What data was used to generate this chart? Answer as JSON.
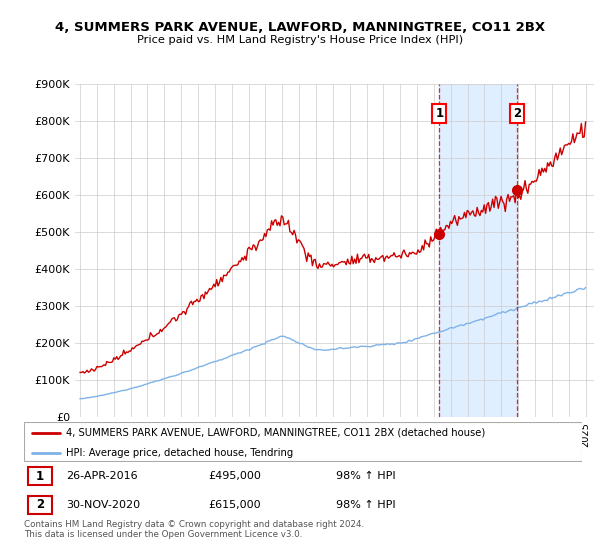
{
  "title": "4, SUMMERS PARK AVENUE, LAWFORD, MANNINGTREE, CO11 2BX",
  "subtitle": "Price paid vs. HM Land Registry's House Price Index (HPI)",
  "ylim": [
    0,
    900000
  ],
  "yticks": [
    0,
    100000,
    200000,
    300000,
    400000,
    500000,
    600000,
    700000,
    800000,
    900000
  ],
  "ytick_labels": [
    "£0",
    "£100K",
    "£200K",
    "£300K",
    "£400K",
    "£500K",
    "£600K",
    "£700K",
    "£800K",
    "£900K"
  ],
  "hpi_color": "#7fb3e8",
  "price_color": "#cc0000",
  "shade_color": "#ddeeff",
  "sale1_t": 21.33,
  "sale1_price": 495000,
  "sale2_t": 25.92,
  "sale2_price": 615000,
  "legend_label_red": "4, SUMMERS PARK AVENUE, LAWFORD, MANNINGTREE, CO11 2BX (detached house)",
  "legend_label_blue": "HPI: Average price, detached house, Tendring",
  "sale1_date_str": "26-APR-2016",
  "sale1_pct": "98% ↑ HPI",
  "sale2_date_str": "30-NOV-2020",
  "sale2_pct": "98% ↑ HPI",
  "sale1_price_str": "£495,000",
  "sale2_price_str": "£615,000",
  "footer": "Contains HM Land Registry data © Crown copyright and database right 2024.\nThis data is licensed under the Open Government Licence v3.0."
}
